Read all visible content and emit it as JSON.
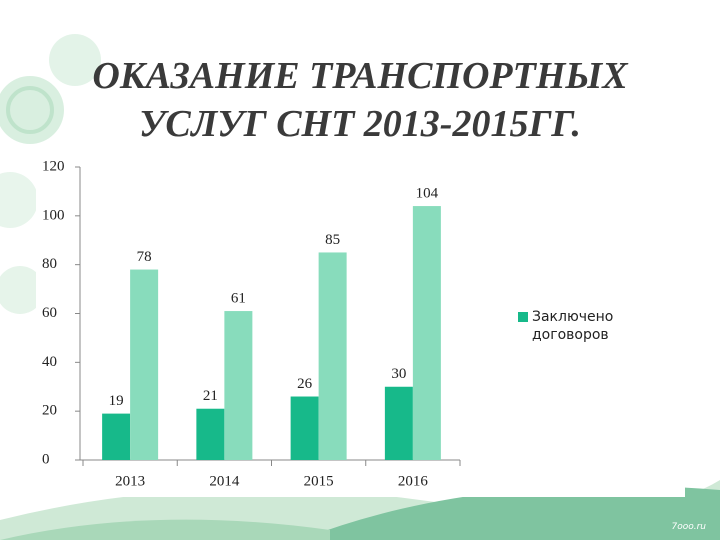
{
  "title": "ОКАЗАНИЕ ТРАНСПОРТНЫХ УСЛУГ СНТ 2013-2015ГГ.",
  "watermark": "7ooo.ru",
  "chart_data": {
    "type": "bar",
    "categories": [
      "2013",
      "2014",
      "2015",
      "2016"
    ],
    "series": [
      {
        "name": "Заключено договоров",
        "color": "#17b98a",
        "values": [
          19,
          21,
          26,
          30
        ]
      },
      {
        "color": "#88dcbc",
        "values": [
          78,
          61,
          85,
          104
        ]
      }
    ],
    "ylim": [
      0,
      120
    ],
    "yticks": [
      0,
      20,
      40,
      60,
      80,
      100,
      120
    ],
    "grid": false,
    "legend": "right"
  }
}
